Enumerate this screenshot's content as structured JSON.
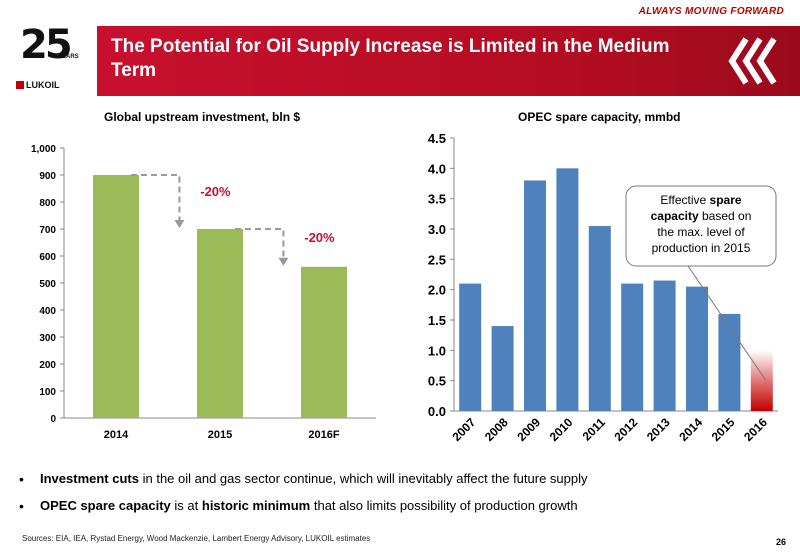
{
  "header": {
    "tagline": "ALWAYS MOVING FORWARD",
    "title": "The Potential for Oil Supply Increase is Limited in the Medium Term",
    "logo": {
      "number": "25",
      "years_text": "YEARS",
      "brand": "LUKOIL"
    },
    "colors": {
      "accent": "#c8102e",
      "bar_green": "#9bbb59",
      "bar_blue": "#4f81bd"
    }
  },
  "chart_data": [
    {
      "type": "bar",
      "title": "Global upstream investment, bln $",
      "categories": [
        "2014",
        "2015",
        "2016F"
      ],
      "values": [
        900,
        700,
        560
      ],
      "ylim": [
        0,
        1000
      ],
      "yticks": [
        "0",
        "100",
        "200",
        "300",
        "400",
        "500",
        "600",
        "700",
        "800",
        "900",
        "1,000"
      ],
      "annotations": [
        "-20%",
        "-20%"
      ],
      "grid": false
    },
    {
      "type": "bar",
      "title": "OPEC spare capacity, mmbd",
      "categories": [
        "2007",
        "2008",
        "2009",
        "2010",
        "2011",
        "2012",
        "2013",
        "2014",
        "2015",
        "2016"
      ],
      "values": [
        2.1,
        1.4,
        3.8,
        4.0,
        3.05,
        2.1,
        2.15,
        2.05,
        1.6,
        1.0
      ],
      "ylim": [
        0,
        4.5
      ],
      "yticks": [
        "0.0",
        "0.5",
        "1.0",
        "1.5",
        "2.0",
        "2.5",
        "3.0",
        "3.5",
        "4.0",
        "4.5"
      ],
      "callout": {
        "parts": [
          "Effective ",
          "spare capacity",
          " based on the max. level of production in 2015"
        ]
      },
      "grid": false
    }
  ],
  "bullets": [
    {
      "bold": "Investment cuts",
      "text": " in the oil and gas sector continue, which will inevitably affect the future supply"
    },
    {
      "parts": [
        {
          "b": true,
          "t": "OPEC spare capacity"
        },
        {
          "b": false,
          "t": " is at "
        },
        {
          "b": true,
          "t": "historic minimum"
        },
        {
          "b": false,
          "t": " that also limits possibility of production growth"
        }
      ]
    }
  ],
  "footer": {
    "sources": "Sources: EIA, IEA, Rystad Energy, Wood Mackenzie, Lambert Energy Advisory, LUKOIL estimates",
    "page": "26"
  }
}
